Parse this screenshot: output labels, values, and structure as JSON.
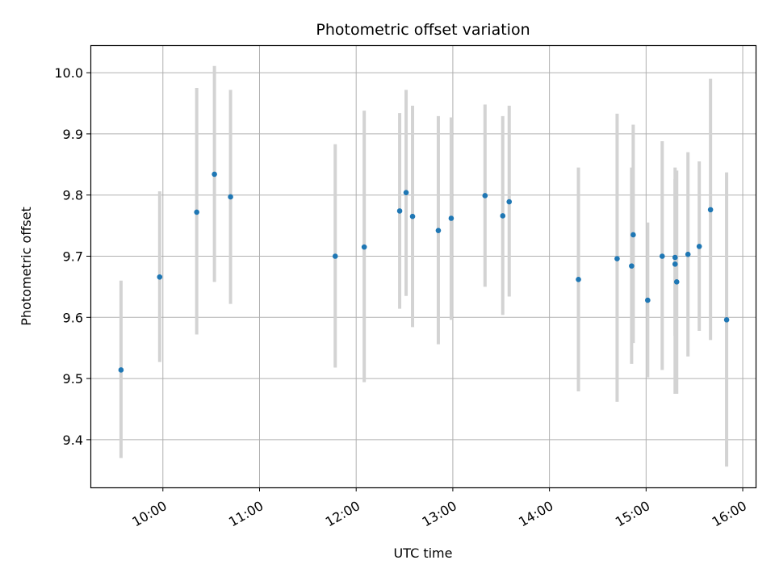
{
  "chart_data": {
    "type": "scatter",
    "title": "Photometric offset variation",
    "xlabel": "UTC time",
    "ylabel": "Photometric offset",
    "x_unit": "time",
    "x_ticks": [
      "10:00",
      "11:00",
      "12:00",
      "13:00",
      "14:00",
      "15:00",
      "16:00"
    ],
    "y_ticks": [
      "9.4",
      "9.5",
      "9.6",
      "9.7",
      "9.8",
      "9.9",
      "10.0"
    ],
    "xlim": [
      "09:15",
      "16:08"
    ],
    "ylim": [
      9.322,
      10.045
    ],
    "grid": true,
    "legend": "none",
    "colors": {
      "points": "#1f77b4",
      "errorbars": "#d3d3d3",
      "grid": "#b0b0b0"
    },
    "points": [
      {
        "t": "09:34",
        "y": 9.514,
        "lo": 9.37,
        "hi": 9.66
      },
      {
        "t": "09:58",
        "y": 9.666,
        "lo": 9.527,
        "hi": 9.806
      },
      {
        "t": "10:21",
        "y": 9.772,
        "lo": 9.572,
        "hi": 9.975
      },
      {
        "t": "10:32",
        "y": 9.834,
        "lo": 9.658,
        "hi": 10.011
      },
      {
        "t": "10:42",
        "y": 9.797,
        "lo": 9.622,
        "hi": 9.972
      },
      {
        "t": "11:47",
        "y": 9.7,
        "lo": 9.518,
        "hi": 9.883
      },
      {
        "t": "12:05",
        "y": 9.715,
        "lo": 9.494,
        "hi": 9.938
      },
      {
        "t": "12:27",
        "y": 9.774,
        "lo": 9.614,
        "hi": 9.934
      },
      {
        "t": "12:31",
        "y": 9.804,
        "lo": 9.635,
        "hi": 9.972
      },
      {
        "t": "12:35",
        "y": 9.765,
        "lo": 9.584,
        "hi": 9.946
      },
      {
        "t": "12:51",
        "y": 9.742,
        "lo": 9.556,
        "hi": 9.929
      },
      {
        "t": "12:59",
        "y": 9.762,
        "lo": 9.596,
        "hi": 9.927
      },
      {
        "t": "13:20",
        "y": 9.799,
        "lo": 9.65,
        "hi": 9.948
      },
      {
        "t": "13:31",
        "y": 9.766,
        "lo": 9.604,
        "hi": 9.929
      },
      {
        "t": "13:35",
        "y": 9.789,
        "lo": 9.634,
        "hi": 9.946
      },
      {
        "t": "14:18",
        "y": 9.662,
        "lo": 9.479,
        "hi": 9.845
      },
      {
        "t": "14:42",
        "y": 9.696,
        "lo": 9.462,
        "hi": 9.933
      },
      {
        "t": "14:51",
        "y": 9.684,
        "lo": 9.524,
        "hi": 9.845
      },
      {
        "t": "14:52",
        "y": 9.735,
        "lo": 9.558,
        "hi": 9.915
      },
      {
        "t": "15:01",
        "y": 9.628,
        "lo": 9.502,
        "hi": 9.755
      },
      {
        "t": "15:10",
        "y": 9.7,
        "lo": 9.514,
        "hi": 9.888
      },
      {
        "t": "15:18",
        "y": 9.687,
        "lo": 9.57,
        "hi": 9.826
      },
      {
        "t": "15:18",
        "y": 9.698,
        "lo": 9.475,
        "hi": 9.845
      },
      {
        "t": "15:19",
        "y": 9.658,
        "lo": 9.475,
        "hi": 9.84
      },
      {
        "t": "15:26",
        "y": 9.703,
        "lo": 9.536,
        "hi": 9.87
      },
      {
        "t": "15:33",
        "y": 9.716,
        "lo": 9.578,
        "hi": 9.855
      },
      {
        "t": "15:40",
        "y": 9.776,
        "lo": 9.563,
        "hi": 9.99
      },
      {
        "t": "15:50",
        "y": 9.596,
        "lo": 9.356,
        "hi": 9.837
      }
    ]
  }
}
